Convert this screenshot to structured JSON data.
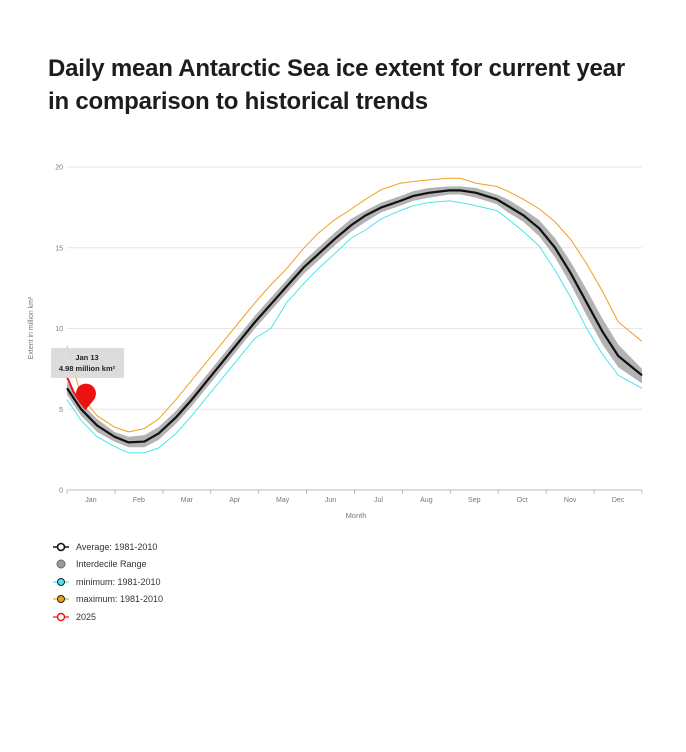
{
  "title": "Daily mean Antarctic Sea ice extent for current year in comparison to historical trends",
  "tooltip": {
    "date": "Jan 13",
    "value": "4.98 million km²"
  },
  "legend": [
    {
      "label": "Average: 1981-2010",
      "key": "average"
    },
    {
      "label": "Interdecile Range",
      "key": "interdecile"
    },
    {
      "label": "minimum: 1981-2010",
      "key": "minimum"
    },
    {
      "label": "maximum: 1981-2010",
      "key": "maximum"
    },
    {
      "label": "2025",
      "key": "current"
    }
  ],
  "colors": {
    "average": "#111111",
    "interdecile": "#a6a6a6",
    "minimum": "#4ee3ee",
    "maximum": "#f0a020",
    "current": "#ee1111",
    "grid": "#e6e6e6"
  },
  "chart_data": {
    "type": "line",
    "xlabel": "Month",
    "ylabel": "Extent in million km²",
    "ylim": [
      0,
      20
    ],
    "yticks": [
      0,
      5,
      10,
      15,
      20
    ],
    "xticks": [
      "Jan",
      "Feb",
      "Mar",
      "Apr",
      "May",
      "Jun",
      "Jul",
      "Aug",
      "Sep",
      "Oct",
      "Nov",
      "Dec"
    ],
    "grid": true,
    "legend_position": "bottom-left",
    "x_unit": "day of year",
    "x": [
      1,
      10,
      20,
      31,
      40,
      50,
      59,
      70,
      80,
      90,
      100,
      110,
      120,
      130,
      140,
      151,
      160,
      170,
      181,
      190,
      200,
      212,
      220,
      230,
      243,
      250,
      260,
      273,
      280,
      290,
      300,
      310,
      320,
      330,
      340,
      350,
      365
    ],
    "series": [
      {
        "name": "Average: 1981-2010",
        "key": "average",
        "values": [
          6.3,
          5.0,
          4.0,
          3.3,
          2.95,
          3.0,
          3.5,
          4.5,
          5.6,
          6.8,
          8.0,
          9.2,
          10.4,
          11.5,
          12.6,
          13.8,
          14.6,
          15.5,
          16.4,
          17.0,
          17.5,
          17.9,
          18.2,
          18.4,
          18.55,
          18.55,
          18.4,
          18.0,
          17.6,
          17.0,
          16.2,
          15.0,
          13.4,
          11.6,
          9.8,
          8.3,
          7.1
        ]
      },
      {
        "name": "Interdecile Range",
        "key": "interdecile_upper",
        "values": [
          6.7,
          5.4,
          4.4,
          3.6,
          3.3,
          3.4,
          3.9,
          4.9,
          6.0,
          7.2,
          8.4,
          9.6,
          10.8,
          11.9,
          13.0,
          14.2,
          15.0,
          15.9,
          16.8,
          17.3,
          17.8,
          18.2,
          18.5,
          18.7,
          18.8,
          18.8,
          18.7,
          18.3,
          18.0,
          17.4,
          16.7,
          15.6,
          14.1,
          12.4,
          10.6,
          9.0,
          7.5
        ]
      },
      {
        "name": "Interdecile Range",
        "key": "interdecile_lower",
        "values": [
          5.9,
          4.6,
          3.6,
          3.0,
          2.65,
          2.65,
          3.1,
          4.1,
          5.2,
          6.4,
          7.6,
          8.8,
          10.0,
          11.1,
          12.2,
          13.4,
          14.2,
          15.1,
          16.0,
          16.6,
          17.2,
          17.6,
          17.9,
          18.1,
          18.3,
          18.3,
          18.1,
          17.7,
          17.2,
          16.6,
          15.7,
          14.4,
          12.7,
          10.8,
          9.0,
          7.6,
          6.6
        ]
      },
      {
        "name": "minimum: 1981-2010",
        "key": "minimum",
        "values": [
          5.6,
          4.3,
          3.3,
          2.7,
          2.3,
          2.3,
          2.6,
          3.5,
          4.6,
          5.8,
          7.0,
          8.2,
          9.4,
          10.0,
          11.6,
          12.8,
          13.7,
          14.6,
          15.6,
          16.1,
          16.8,
          17.3,
          17.6,
          17.8,
          17.9,
          17.8,
          17.6,
          17.3,
          16.8,
          16.0,
          15.1,
          13.6,
          11.9,
          10.0,
          8.4,
          7.1,
          6.3
        ]
      },
      {
        "name": "maximum: 1981-2010",
        "key": "maximum",
        "values": [
          8.9,
          5.8,
          4.6,
          3.9,
          3.6,
          3.8,
          4.4,
          5.6,
          6.8,
          8.0,
          9.2,
          10.4,
          11.6,
          12.7,
          13.7,
          15.0,
          15.9,
          16.7,
          17.4,
          18.0,
          18.6,
          19.0,
          19.1,
          19.2,
          19.3,
          19.3,
          19.0,
          18.8,
          18.5,
          18.0,
          17.4,
          16.6,
          15.5,
          14.0,
          12.3,
          10.4,
          9.2
        ]
      },
      {
        "name": "2025",
        "key": "current",
        "x": [
          1,
          5,
          9,
          13
        ],
        "values": [
          7.0,
          6.1,
          5.5,
          4.98
        ]
      }
    ]
  }
}
